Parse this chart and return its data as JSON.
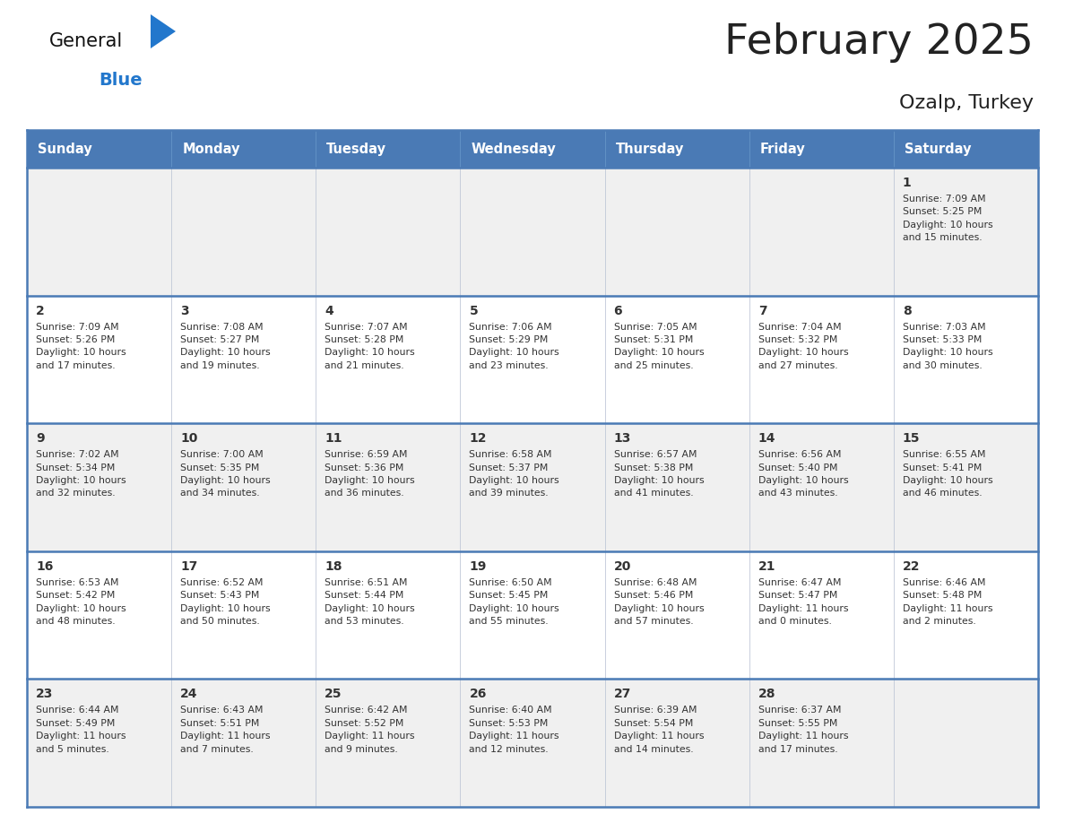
{
  "title": "February 2025",
  "subtitle": "Ozalp, Turkey",
  "header_bg": "#4a7ab5",
  "header_text": "#ffffff",
  "day_headers": [
    "Sunday",
    "Monday",
    "Tuesday",
    "Wednesday",
    "Thursday",
    "Friday",
    "Saturday"
  ],
  "row_bg_light": "#f0f0f0",
  "row_bg_white": "#ffffff",
  "cell_border_color": "#4a7ab5",
  "cell_border_light": "#c0c8d8",
  "text_color": "#333333",
  "title_color": "#222222",
  "logo_general_color": "#111111",
  "logo_blue_color": "#2277cc",
  "logo_triangle_color": "#2277cc",
  "calendar": [
    [
      {
        "day": null,
        "info": null
      },
      {
        "day": null,
        "info": null
      },
      {
        "day": null,
        "info": null
      },
      {
        "day": null,
        "info": null
      },
      {
        "day": null,
        "info": null
      },
      {
        "day": null,
        "info": null
      },
      {
        "day": "1",
        "info": "Sunrise: 7:09 AM\nSunset: 5:25 PM\nDaylight: 10 hours\nand 15 minutes."
      }
    ],
    [
      {
        "day": "2",
        "info": "Sunrise: 7:09 AM\nSunset: 5:26 PM\nDaylight: 10 hours\nand 17 minutes."
      },
      {
        "day": "3",
        "info": "Sunrise: 7:08 AM\nSunset: 5:27 PM\nDaylight: 10 hours\nand 19 minutes."
      },
      {
        "day": "4",
        "info": "Sunrise: 7:07 AM\nSunset: 5:28 PM\nDaylight: 10 hours\nand 21 minutes."
      },
      {
        "day": "5",
        "info": "Sunrise: 7:06 AM\nSunset: 5:29 PM\nDaylight: 10 hours\nand 23 minutes."
      },
      {
        "day": "6",
        "info": "Sunrise: 7:05 AM\nSunset: 5:31 PM\nDaylight: 10 hours\nand 25 minutes."
      },
      {
        "day": "7",
        "info": "Sunrise: 7:04 AM\nSunset: 5:32 PM\nDaylight: 10 hours\nand 27 minutes."
      },
      {
        "day": "8",
        "info": "Sunrise: 7:03 AM\nSunset: 5:33 PM\nDaylight: 10 hours\nand 30 minutes."
      }
    ],
    [
      {
        "day": "9",
        "info": "Sunrise: 7:02 AM\nSunset: 5:34 PM\nDaylight: 10 hours\nand 32 minutes."
      },
      {
        "day": "10",
        "info": "Sunrise: 7:00 AM\nSunset: 5:35 PM\nDaylight: 10 hours\nand 34 minutes."
      },
      {
        "day": "11",
        "info": "Sunrise: 6:59 AM\nSunset: 5:36 PM\nDaylight: 10 hours\nand 36 minutes."
      },
      {
        "day": "12",
        "info": "Sunrise: 6:58 AM\nSunset: 5:37 PM\nDaylight: 10 hours\nand 39 minutes."
      },
      {
        "day": "13",
        "info": "Sunrise: 6:57 AM\nSunset: 5:38 PM\nDaylight: 10 hours\nand 41 minutes."
      },
      {
        "day": "14",
        "info": "Sunrise: 6:56 AM\nSunset: 5:40 PM\nDaylight: 10 hours\nand 43 minutes."
      },
      {
        "day": "15",
        "info": "Sunrise: 6:55 AM\nSunset: 5:41 PM\nDaylight: 10 hours\nand 46 minutes."
      }
    ],
    [
      {
        "day": "16",
        "info": "Sunrise: 6:53 AM\nSunset: 5:42 PM\nDaylight: 10 hours\nand 48 minutes."
      },
      {
        "day": "17",
        "info": "Sunrise: 6:52 AM\nSunset: 5:43 PM\nDaylight: 10 hours\nand 50 minutes."
      },
      {
        "day": "18",
        "info": "Sunrise: 6:51 AM\nSunset: 5:44 PM\nDaylight: 10 hours\nand 53 minutes."
      },
      {
        "day": "19",
        "info": "Sunrise: 6:50 AM\nSunset: 5:45 PM\nDaylight: 10 hours\nand 55 minutes."
      },
      {
        "day": "20",
        "info": "Sunrise: 6:48 AM\nSunset: 5:46 PM\nDaylight: 10 hours\nand 57 minutes."
      },
      {
        "day": "21",
        "info": "Sunrise: 6:47 AM\nSunset: 5:47 PM\nDaylight: 11 hours\nand 0 minutes."
      },
      {
        "day": "22",
        "info": "Sunrise: 6:46 AM\nSunset: 5:48 PM\nDaylight: 11 hours\nand 2 minutes."
      }
    ],
    [
      {
        "day": "23",
        "info": "Sunrise: 6:44 AM\nSunset: 5:49 PM\nDaylight: 11 hours\nand 5 minutes."
      },
      {
        "day": "24",
        "info": "Sunrise: 6:43 AM\nSunset: 5:51 PM\nDaylight: 11 hours\nand 7 minutes."
      },
      {
        "day": "25",
        "info": "Sunrise: 6:42 AM\nSunset: 5:52 PM\nDaylight: 11 hours\nand 9 minutes."
      },
      {
        "day": "26",
        "info": "Sunrise: 6:40 AM\nSunset: 5:53 PM\nDaylight: 11 hours\nand 12 minutes."
      },
      {
        "day": "27",
        "info": "Sunrise: 6:39 AM\nSunset: 5:54 PM\nDaylight: 11 hours\nand 14 minutes."
      },
      {
        "day": "28",
        "info": "Sunrise: 6:37 AM\nSunset: 5:55 PM\nDaylight: 11 hours\nand 17 minutes."
      },
      {
        "day": null,
        "info": null
      }
    ]
  ]
}
